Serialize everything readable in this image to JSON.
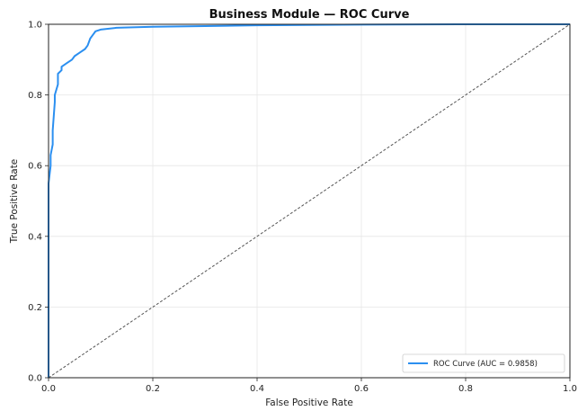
{
  "chart_data": {
    "type": "line",
    "title": "Business Module — ROC Curve",
    "xlabel": "False Positive Rate",
    "ylabel": "True Positive Rate",
    "xlim": [
      0,
      1
    ],
    "ylim": [
      0,
      1
    ],
    "xticks": [
      "0.0",
      "0.2",
      "0.4",
      "0.6",
      "0.8",
      "1.0"
    ],
    "yticks": [
      "0.0",
      "0.2",
      "0.4",
      "0.6",
      "0.8",
      "1.0"
    ],
    "grid": true,
    "legend_position": "lower-right",
    "series": [
      {
        "name": "ROC Curve (AUC = 0.9858)",
        "color": "#2b8ff0",
        "x": [
          0.0,
          0.0,
          0.004,
          0.004,
          0.008,
          0.008,
          0.012,
          0.012,
          0.018,
          0.018,
          0.025,
          0.025,
          0.035,
          0.045,
          0.05,
          0.06,
          0.07,
          0.075,
          0.08,
          0.085,
          0.09,
          0.1,
          0.13,
          0.2,
          0.3,
          0.4,
          0.6,
          0.8,
          1.0
        ],
        "y": [
          0.0,
          0.55,
          0.6,
          0.63,
          0.66,
          0.7,
          0.78,
          0.8,
          0.83,
          0.86,
          0.87,
          0.88,
          0.89,
          0.9,
          0.91,
          0.92,
          0.93,
          0.94,
          0.96,
          0.97,
          0.98,
          0.985,
          0.99,
          0.993,
          0.995,
          0.997,
          0.999,
          1.0,
          1.0
        ]
      }
    ],
    "diagonal": {
      "x": [
        0,
        1
      ],
      "y": [
        0,
        1
      ],
      "color": "#555555",
      "style": "dashed"
    }
  }
}
